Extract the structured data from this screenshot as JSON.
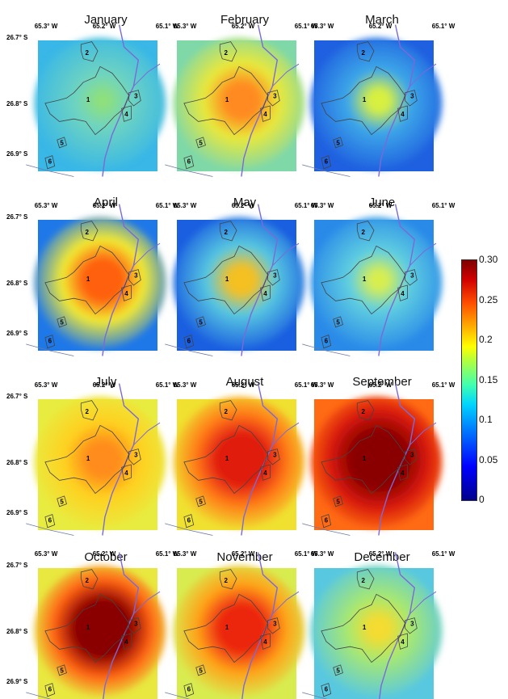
{
  "colorbar": {
    "ticks": [
      {
        "label": "0.30",
        "value": 0.3
      },
      {
        "label": "0.25",
        "value": 0.25
      },
      {
        "label": "0.2",
        "value": 0.2
      },
      {
        "label": "0.15",
        "value": 0.15
      },
      {
        "label": "0.1",
        "value": 0.1
      },
      {
        "label": "0.05",
        "value": 0.05
      },
      {
        "label": "0",
        "value": 0.0
      }
    ],
    "colors": [
      "#00008c",
      "#0000ff",
      "#0080ff",
      "#00d5ff",
      "#40ffb0",
      "#b0ff40",
      "#ffff00",
      "#ffb000",
      "#ff5000",
      "#d00000",
      "#7d0000"
    ]
  },
  "lon_labels": [
    "65.3° W",
    "65.2° W",
    "65.1° W"
  ],
  "lat_labels": [
    "26.7° S",
    "26.8° S",
    "26.9° S"
  ],
  "zone_labels": [
    "1",
    "2",
    "3",
    "4",
    "5",
    "6"
  ],
  "months": [
    {
      "name": "January",
      "background": "#39b7e6",
      "core": "#8fe07a",
      "core_level": 0.15,
      "halo": "#6fd4c0"
    },
    {
      "name": "February",
      "background": "#7fd8a8",
      "core": "#ff8a20",
      "core_level": 0.22,
      "halo": "#e9e83a"
    },
    {
      "name": "March",
      "background": "#1f60e0",
      "core": "#d8f040",
      "core_level": 0.18,
      "halo": "#3da8e8"
    },
    {
      "name": "April",
      "background": "#1f78e8",
      "core": "#ff6010",
      "core_level": 0.24,
      "halo": "#f2ea30"
    },
    {
      "name": "May",
      "background": "#1a5fe0",
      "core": "#f4c020",
      "core_level": 0.2,
      "halo": "#58c8e0"
    },
    {
      "name": "June",
      "background": "#2a8ae8",
      "core": "#d8ee50",
      "core_level": 0.17,
      "halo": "#60cfe0"
    },
    {
      "name": "July",
      "background": "#e8ec40",
      "core": "#ff8c1c",
      "core_level": 0.22,
      "halo": "#ffd020"
    },
    {
      "name": "August",
      "background": "#f0e030",
      "core": "#e01a10",
      "core_level": 0.27,
      "halo": "#ff7a18"
    },
    {
      "name": "September",
      "background": "#ff6a14",
      "core": "#8a0000",
      "core_level": 0.29,
      "halo": "#d81a0c"
    },
    {
      "name": "October",
      "background": "#e8e840",
      "core": "#8a0000",
      "core_level": 0.29,
      "halo": "#ff6414"
    },
    {
      "name": "November",
      "background": "#d8ec50",
      "core": "#ec2810",
      "core_level": 0.26,
      "halo": "#ffa018"
    },
    {
      "name": "December",
      "background": "#58c8e0",
      "core": "#f4dc30",
      "core_level": 0.18,
      "halo": "#a8e870"
    }
  ]
}
